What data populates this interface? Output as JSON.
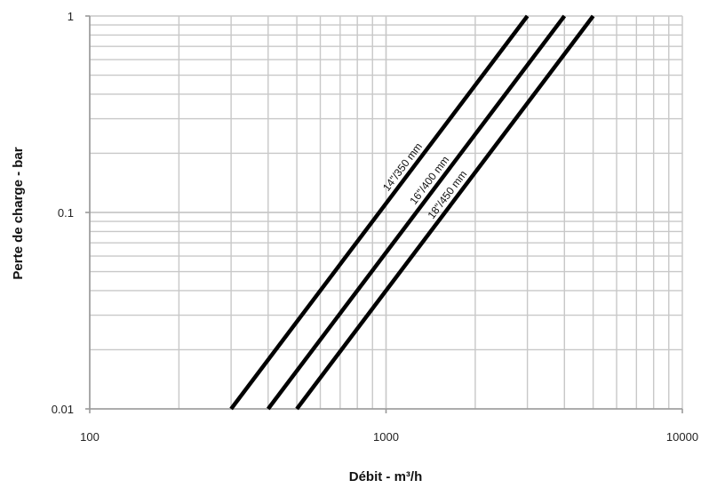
{
  "chart_data": {
    "type": "line",
    "xscale": "log",
    "yscale": "log",
    "xlim": [
      100,
      10000
    ],
    "ylim": [
      0.01,
      1
    ],
    "xlabel": "Débit - m³/h",
    "ylabel": "Perte de charge - bar",
    "x_ticks": [
      "100",
      "1000",
      "10000"
    ],
    "y_ticks": [
      "0.01",
      "0.1",
      "1"
    ],
    "grid": true,
    "series": [
      {
        "name": "14\"/350 mm",
        "x": [
          300,
          3000
        ],
        "y": [
          0.01,
          1
        ]
      },
      {
        "name": "16\"/400 mm",
        "x": [
          400,
          4000
        ],
        "y": [
          0.01,
          1
        ]
      },
      {
        "name": "18\"/450 mm",
        "x": [
          500,
          5000
        ],
        "y": [
          0.01,
          1
        ]
      }
    ],
    "colors": {
      "line": "#000000",
      "grid": "#c8c8c8",
      "axis": "#999999"
    }
  }
}
